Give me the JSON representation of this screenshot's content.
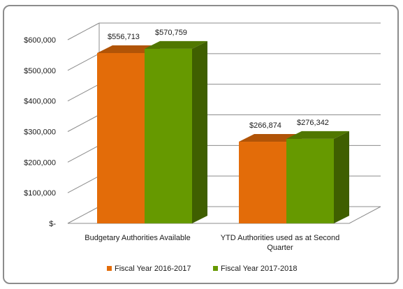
{
  "chart_data": {
    "type": "bar",
    "style": "3d-clustered-column",
    "categories": [
      [
        "Budgetary Authorities Available"
      ],
      [
        "YTD Authorities used as at Second",
        "Quarter"
      ]
    ],
    "series": [
      {
        "name": "Fiscal Year 2016-2017",
        "color": "#E36C09",
        "labels": [
          "$556,713",
          "$266,874"
        ],
        "values": [
          556713,
          266874
        ]
      },
      {
        "name": "Fiscal Year 2017-2018",
        "color": "#669900",
        "labels": [
          "$570,759",
          "$276,342"
        ],
        "values": [
          570759,
          276342
        ]
      }
    ],
    "y_ticks": [
      {
        "value": 0,
        "label": "$-"
      },
      {
        "value": 100000,
        "label": "$100,000"
      },
      {
        "value": 200000,
        "label": "$200,000"
      },
      {
        "value": 300000,
        "label": "$300,000"
      },
      {
        "value": 400000,
        "label": "$400,000"
      },
      {
        "value": 500000,
        "label": "$500,000"
      },
      {
        "value": 600000,
        "label": "$600,000"
      }
    ],
    "ylim": [
      0,
      600000
    ],
    "grid": true,
    "legend": "bottom"
  }
}
